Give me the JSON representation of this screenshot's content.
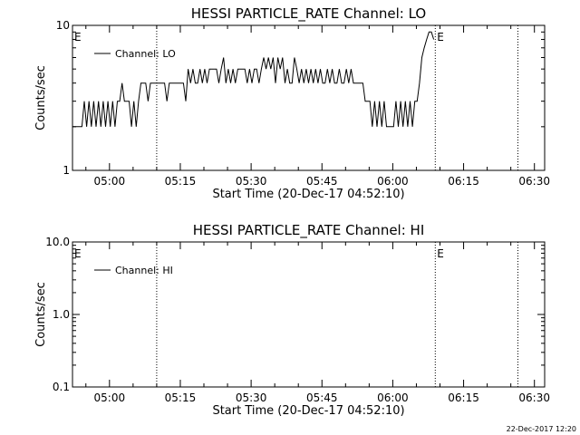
{
  "footer_timestamp": "22-Dec-2017 12:20",
  "chart_data": [
    {
      "type": "line",
      "title": "HESSI PARTICLE_RATE Channel: LO",
      "xlabel": "Start Time (20-Dec-17 04:52:10)",
      "ylabel": "Counts/sec",
      "y_scale": "log",
      "ylim": [
        1,
        10
      ],
      "ytick_labels": [
        "1",
        "10"
      ],
      "xlim": [
        "04:52:10",
        "06:32:10"
      ],
      "xtick_labels": [
        "05:00",
        "05:15",
        "05:30",
        "05:45",
        "06:00",
        "06:15",
        "06:30"
      ],
      "legend": {
        "position": "top-left",
        "label": "Channel: LO"
      },
      "event_markers": [
        {
          "time": "05:10:00",
          "label": ""
        },
        {
          "time": "06:09:00",
          "label": "E"
        },
        {
          "time": "06:26:30",
          "label": ""
        }
      ],
      "edge_label": "E",
      "series": [
        {
          "name": "Channel: LO",
          "time_min_start": "04:52:10",
          "interval_min": 0.5,
          "values": [
            2,
            2,
            2,
            2,
            2,
            3,
            2,
            3,
            2,
            3,
            2,
            3,
            2,
            3,
            2,
            3,
            2,
            3,
            2,
            3,
            3,
            4,
            3,
            3,
            3,
            2,
            3,
            2,
            3,
            4,
            4,
            4,
            3,
            4,
            4,
            4,
            4,
            4,
            4,
            4,
            3,
            4,
            4,
            4,
            4,
            4,
            4,
            4,
            3,
            5,
            4,
            5,
            4,
            4,
            5,
            4,
            5,
            4,
            5,
            5,
            5,
            5,
            4,
            5,
            6,
            4,
            5,
            4,
            5,
            4,
            5,
            5,
            5,
            5,
            4,
            5,
            4,
            5,
            5,
            4,
            5,
            6,
            5,
            6,
            5,
            6,
            4,
            6,
            5,
            6,
            4,
            5,
            4,
            4,
            6,
            5,
            4,
            5,
            4,
            5,
            4,
            5,
            4,
            5,
            4,
            5,
            4,
            4,
            5,
            4,
            5,
            4,
            4,
            5,
            4,
            4,
            5,
            4,
            5,
            4,
            4,
            4,
            4,
            4,
            3,
            3,
            3,
            2,
            3,
            2,
            3,
            2,
            3,
            2,
            2,
            2,
            2,
            3,
            2,
            3,
            2,
            3,
            2,
            3,
            2,
            3,
            3,
            4,
            6,
            7,
            8,
            9,
            9,
            8
          ]
        }
      ]
    },
    {
      "type": "line",
      "title": "HESSI PARTICLE_RATE Channel: HI",
      "xlabel": "Start Time (20-Dec-17 04:52:10)",
      "ylabel": "Counts/sec",
      "y_scale": "log",
      "ylim": [
        0.1,
        10
      ],
      "ytick_labels": [
        "0.1",
        "1.0",
        "10.0"
      ],
      "xlim": [
        "04:52:10",
        "06:32:10"
      ],
      "xtick_labels": [
        "05:00",
        "05:15",
        "05:30",
        "05:45",
        "06:00",
        "06:15",
        "06:30"
      ],
      "legend": {
        "position": "top-left",
        "label": "Channel: HI"
      },
      "event_markers": [
        {
          "time": "05:10:00",
          "label": ""
        },
        {
          "time": "06:09:00",
          "label": "E"
        },
        {
          "time": "06:26:30",
          "label": ""
        }
      ],
      "edge_label": "E",
      "series": [
        {
          "name": "Channel: HI",
          "values": []
        }
      ]
    }
  ]
}
